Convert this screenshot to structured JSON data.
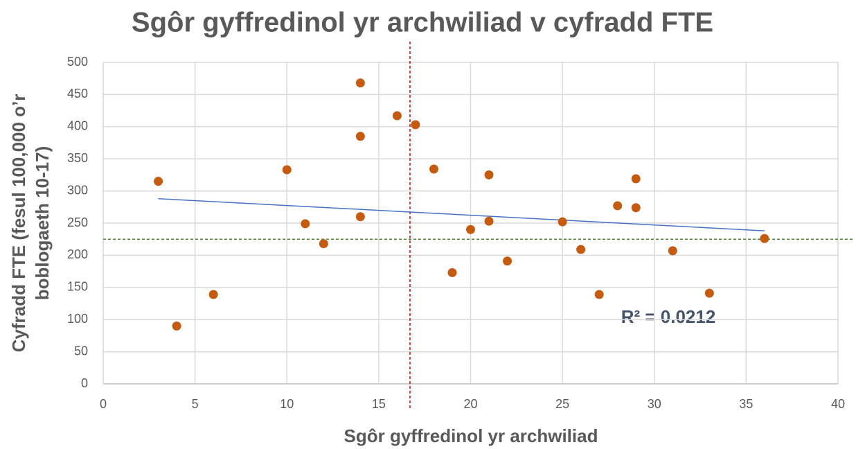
{
  "chart_data": {
    "type": "scatter",
    "title": "Sgôr gyffredinol yr archwiliad v cyfradd FTE",
    "xlabel": "Sgôr gyffredinol yr archwiliad",
    "ylabel": [
      "Cyfradd FTE (fesul 100,000 o’r",
      "boblogaeth 10-17)"
    ],
    "x": [
      3,
      4,
      6,
      10,
      11,
      12,
      14,
      14,
      14,
      16,
      17,
      18,
      19,
      20,
      21,
      21,
      22,
      25,
      26,
      27,
      28,
      29,
      29,
      31,
      33,
      36
    ],
    "y": [
      315,
      90,
      139,
      333,
      249,
      218,
      468,
      385,
      260,
      417,
      403,
      334,
      173,
      240,
      325,
      253,
      191,
      252,
      209,
      139,
      277,
      319,
      274,
      207,
      141,
      226
    ],
    "color": "#c55a11",
    "xlim": [
      0,
      40
    ],
    "xticks": [
      0,
      5,
      10,
      15,
      20,
      25,
      30,
      35,
      40
    ],
    "ylim": [
      0,
      500
    ],
    "yticks": [
      0,
      50,
      100,
      150,
      200,
      250,
      300,
      350,
      400,
      450,
      500
    ],
    "grid": true,
    "trendline": {
      "x": [
        3,
        36
      ],
      "y": [
        288,
        238
      ],
      "color": "#4472c4"
    },
    "vline": {
      "x": 16.7,
      "color": "#e00000"
    },
    "hline": {
      "y": 225,
      "color": "#548235"
    },
    "annotation": "R² = 0.0212"
  }
}
